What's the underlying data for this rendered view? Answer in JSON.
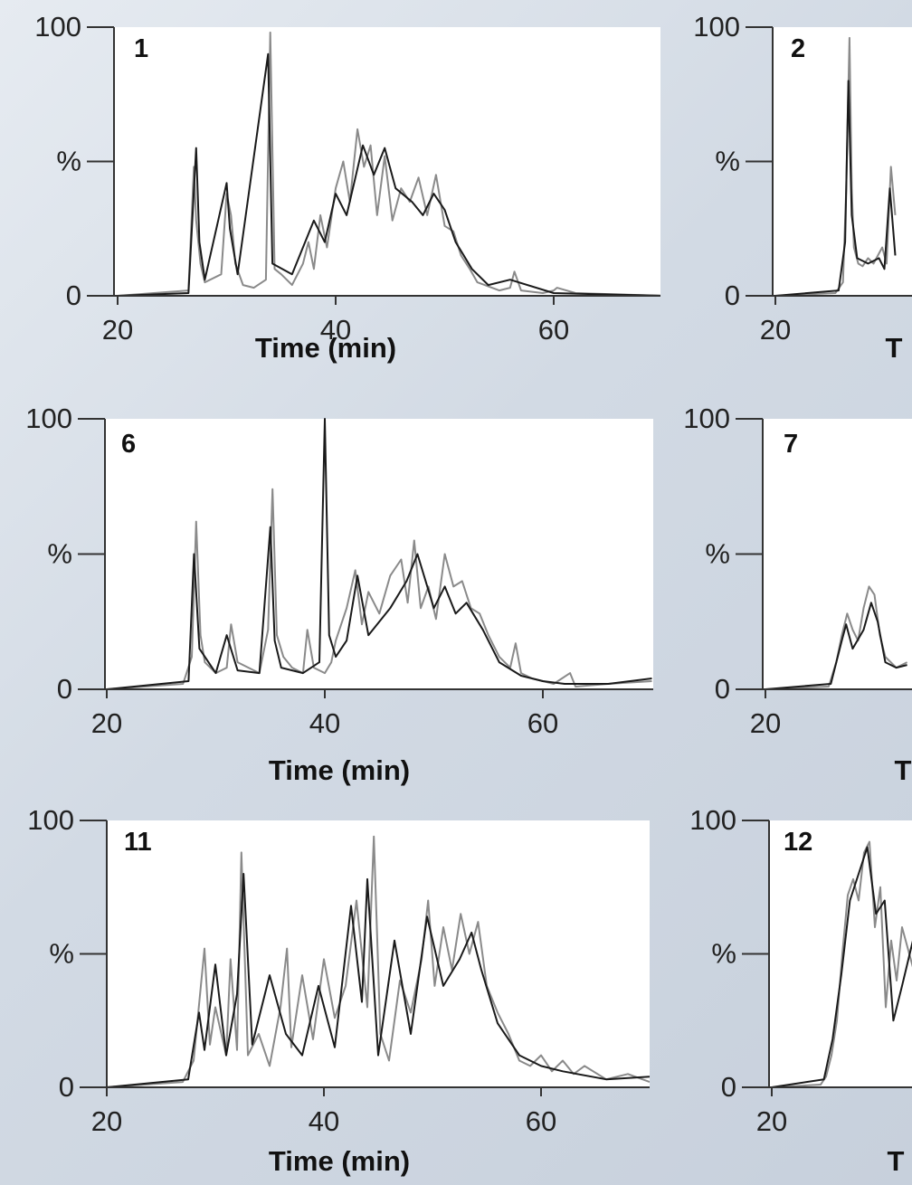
{
  "chart_data": [
    {
      "type": "line",
      "panel_label": "1",
      "xlabel": "Time (min)",
      "ylabel": "%",
      "xlim": [
        20,
        70
      ],
      "ylim": [
        0,
        100
      ],
      "x_ticks": [
        "20",
        "40",
        "60"
      ],
      "y_ticks": [
        "0",
        "%",
        "100"
      ],
      "series": [
        {
          "color": "#8a8a8a",
          "x": [
            20,
            26.5,
            27.0,
            27.2,
            27.6,
            28.0,
            29.5,
            30.0,
            30.4,
            30.8,
            31.5,
            32.5,
            33.6,
            34.0,
            34.4,
            35.0,
            36.0,
            37.0,
            37.5,
            38.0,
            38.6,
            39.2,
            40.0,
            40.7,
            41.3,
            42.0,
            42.6,
            43.2,
            43.8,
            44.5,
            45.2,
            46.0,
            46.8,
            47.6,
            48.4,
            49.2,
            50.0,
            50.8,
            51.5,
            52.3,
            53.0,
            55.0,
            56.0,
            56.4,
            57.0,
            59.0,
            60.0,
            60.3,
            62.0,
            70
          ],
          "y": [
            0,
            2,
            48,
            28,
            12,
            5,
            8,
            38,
            30,
            12,
            4,
            3,
            6,
            98,
            10,
            8,
            4,
            12,
            20,
            10,
            30,
            18,
            40,
            50,
            35,
            62,
            48,
            56,
            30,
            52,
            28,
            40,
            35,
            44,
            30,
            45,
            26,
            24,
            15,
            10,
            5,
            2,
            3,
            9,
            2,
            1,
            2,
            3,
            1,
            0
          ]
        },
        {
          "color": "#1a1a1a",
          "x": [
            20,
            26.5,
            27.2,
            27.5,
            28.0,
            30.0,
            30.3,
            31.0,
            33.8,
            34.2,
            36.0,
            38.0,
            39.0,
            40.0,
            41.0,
            42.5,
            43.5,
            44.5,
            45.5,
            47.0,
            48.0,
            49.0,
            50.0,
            51.0,
            52.5,
            54.0,
            56.0,
            60.0,
            70
          ],
          "y": [
            0,
            1,
            55,
            20,
            6,
            42,
            25,
            8,
            90,
            12,
            8,
            28,
            20,
            38,
            30,
            56,
            45,
            55,
            40,
            35,
            30,
            38,
            32,
            20,
            10,
            4,
            6,
            1,
            0
          ]
        }
      ]
    },
    {
      "type": "line",
      "panel_label": "2",
      "xlabel": "T",
      "ylabel": "%",
      "xlim": [
        20,
        31
      ],
      "ylim": [
        0,
        100
      ],
      "x_ticks": [
        "20"
      ],
      "y_ticks": [
        "0",
        "%",
        "100"
      ],
      "series": [
        {
          "color": "#8a8a8a",
          "x": [
            20,
            25.5,
            26.2,
            26.5,
            26.8,
            27.0,
            27.2,
            27.6,
            28.0,
            28.5,
            29.0,
            29.4,
            29.8,
            30.2,
            30.6,
            31.0
          ],
          "y": [
            0,
            1,
            5,
            40,
            96,
            40,
            18,
            12,
            11,
            14,
            12,
            15,
            18,
            12,
            48,
            30
          ]
        },
        {
          "color": "#1a1a1a",
          "x": [
            20,
            25.8,
            26.4,
            26.7,
            27.0,
            27.5,
            28.5,
            29.5,
            30.0,
            30.5,
            31.0
          ],
          "y": [
            0,
            2,
            20,
            80,
            30,
            14,
            12,
            14,
            10,
            40,
            15
          ]
        }
      ]
    },
    {
      "type": "line",
      "panel_label": "6",
      "xlabel": "Time (min)",
      "ylabel": "%",
      "xlim": [
        20,
        70
      ],
      "ylim": [
        0,
        100
      ],
      "x_ticks": [
        "20",
        "40",
        "60"
      ],
      "y_ticks": [
        "0",
        "%",
        "100"
      ],
      "series": [
        {
          "color": "#8a8a8a",
          "x": [
            20,
            27.0,
            27.8,
            28.2,
            28.6,
            29.0,
            30.0,
            31.0,
            31.4,
            32.0,
            33.0,
            34.0,
            34.8,
            35.2,
            35.6,
            36.2,
            37.0,
            38.0,
            38.4,
            39.0,
            40.0,
            40.6,
            41.0,
            42.0,
            42.8,
            43.4,
            44.0,
            45.0,
            46.0,
            47.0,
            47.6,
            48.2,
            48.8,
            49.5,
            50.2,
            51.0,
            51.8,
            52.6,
            53.4,
            54.2,
            55.0,
            56.0,
            57.0,
            57.5,
            58.0,
            59.0,
            60.0,
            61.0,
            62.5,
            63.0,
            66.0,
            70
          ],
          "y": [
            0,
            2,
            12,
            62,
            20,
            10,
            6,
            8,
            24,
            10,
            8,
            6,
            22,
            74,
            20,
            12,
            8,
            6,
            22,
            8,
            6,
            10,
            18,
            30,
            44,
            24,
            36,
            28,
            42,
            48,
            32,
            55,
            30,
            38,
            26,
            50,
            38,
            40,
            30,
            28,
            20,
            12,
            8,
            17,
            6,
            4,
            3,
            2,
            6,
            1,
            2,
            3
          ]
        },
        {
          "color": "#1a1a1a",
          "x": [
            20,
            27.5,
            28.0,
            28.5,
            30.0,
            31.0,
            32.0,
            34.0,
            35.0,
            35.4,
            36.0,
            38.0,
            39.5,
            40.0,
            40.4,
            41.0,
            42.0,
            43.0,
            44.0,
            46.0,
            47.5,
            48.5,
            50.0,
            51.0,
            52.0,
            53.0,
            54.5,
            56.0,
            58.0,
            60.0,
            62.0,
            66.0,
            70
          ],
          "y": [
            0,
            3,
            50,
            15,
            6,
            20,
            7,
            6,
            60,
            18,
            8,
            6,
            10,
            100,
            20,
            12,
            18,
            42,
            20,
            30,
            40,
            50,
            30,
            38,
            28,
            32,
            22,
            10,
            5,
            3,
            2,
            2,
            4
          ]
        }
      ]
    },
    {
      "type": "line",
      "panel_label": "7",
      "xlabel": "T",
      "ylabel": "%",
      "xlim": [
        20,
        33
      ],
      "ylim": [
        0,
        100
      ],
      "x_ticks": [
        "20"
      ],
      "y_ticks": [
        "0",
        "%",
        "100"
      ],
      "series": [
        {
          "color": "#8a8a8a",
          "x": [
            20,
            25.8,
            26.5,
            27.0,
            27.5,
            28.0,
            28.5,
            29.0,
            29.5,
            30.0,
            30.5,
            31.0,
            31.5,
            32.0,
            33.0
          ],
          "y": [
            0,
            1,
            10,
            20,
            28,
            22,
            18,
            30,
            38,
            35,
            20,
            12,
            10,
            8,
            10
          ]
        },
        {
          "color": "#1a1a1a",
          "x": [
            20,
            26.0,
            27.0,
            27.4,
            28.0,
            29.0,
            29.7,
            30.3,
            31.0,
            32.0,
            33.0
          ],
          "y": [
            0,
            2,
            18,
            24,
            15,
            22,
            32,
            25,
            10,
            8,
            9
          ]
        }
      ]
    },
    {
      "type": "line",
      "panel_label": "11",
      "xlabel": "Time (min)",
      "ylabel": "%",
      "xlim": [
        20,
        70
      ],
      "ylim": [
        0,
        100
      ],
      "x_ticks": [
        "20",
        "40",
        "60"
      ],
      "y_ticks": [
        "0",
        "%",
        "100"
      ],
      "series": [
        {
          "color": "#8a8a8a",
          "x": [
            20,
            27.0,
            28.0,
            29.0,
            29.5,
            30.0,
            31.0,
            31.4,
            32.0,
            32.4,
            33.0,
            34.0,
            35.0,
            36.0,
            36.6,
            37.0,
            38.0,
            39.0,
            40.0,
            41.0,
            42.0,
            43.0,
            44.0,
            44.6,
            45.2,
            46.0,
            47.0,
            48.0,
            49.0,
            49.6,
            50.2,
            51.0,
            51.8,
            52.6,
            53.4,
            54.2,
            55.0,
            56.0,
            57.0,
            58.0,
            59.0,
            60.0,
            61.0,
            62.0,
            63.0,
            64.0,
            66.0,
            68.0,
            70
          ],
          "y": [
            0,
            2,
            10,
            52,
            16,
            30,
            12,
            48,
            14,
            88,
            12,
            20,
            8,
            30,
            52,
            15,
            42,
            18,
            48,
            26,
            38,
            70,
            30,
            94,
            20,
            10,
            40,
            28,
            48,
            70,
            38,
            60,
            44,
            65,
            50,
            62,
            38,
            28,
            20,
            10,
            8,
            12,
            6,
            10,
            5,
            8,
            3,
            5,
            2
          ]
        },
        {
          "color": "#1a1a1a",
          "x": [
            20,
            27.5,
            28.5,
            29.0,
            30.0,
            31.0,
            32.0,
            32.6,
            33.4,
            35.0,
            36.5,
            38.0,
            39.5,
            41.0,
            42.5,
            43.5,
            44.0,
            45.0,
            46.5,
            48.0,
            49.5,
            51.0,
            52.5,
            53.6,
            54.5,
            56.0,
            58.0,
            60.0,
            62.0,
            66.0,
            70
          ],
          "y": [
            0,
            3,
            28,
            14,
            46,
            12,
            35,
            80,
            16,
            42,
            20,
            12,
            38,
            15,
            68,
            32,
            78,
            12,
            55,
            20,
            64,
            38,
            48,
            58,
            44,
            24,
            12,
            8,
            6,
            3,
            4
          ]
        }
      ]
    },
    {
      "type": "line",
      "panel_label": "12",
      "xlabel": "T",
      "ylabel": "%",
      "xlim": [
        20,
        33
      ],
      "ylim": [
        0,
        100
      ],
      "x_ticks": [
        "20"
      ],
      "y_ticks": [
        "0",
        "%",
        "100"
      ],
      "series": [
        {
          "color": "#8a8a8a",
          "x": [
            20,
            24.5,
            25.0,
            25.5,
            26.0,
            26.5,
            27.0,
            27.5,
            28.0,
            28.5,
            29.0,
            29.5,
            30.0,
            30.5,
            31.0,
            31.5,
            32.0,
            33.0
          ],
          "y": [
            0,
            1,
            4,
            12,
            25,
            50,
            72,
            78,
            70,
            88,
            92,
            60,
            75,
            30,
            55,
            40,
            60,
            45
          ]
        },
        {
          "color": "#1a1a1a",
          "x": [
            20,
            24.8,
            25.6,
            26.4,
            27.2,
            28.0,
            28.8,
            29.6,
            30.4,
            31.2,
            32.0,
            33.0
          ],
          "y": [
            0,
            3,
            18,
            42,
            70,
            80,
            90,
            65,
            70,
            25,
            38,
            55
          ]
        }
      ]
    }
  ]
}
